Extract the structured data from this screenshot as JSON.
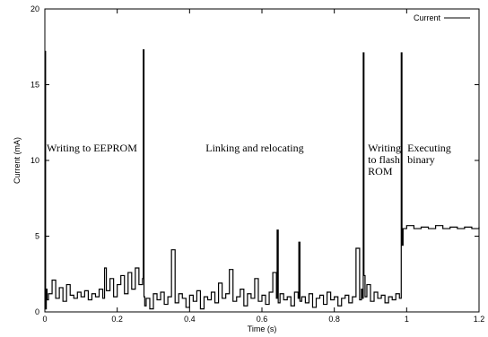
{
  "chart_data": {
    "type": "line",
    "title": "",
    "xlabel": "Time (s)",
    "ylabel": "Current (mA)",
    "xlim": [
      0,
      1.2
    ],
    "ylim": [
      0,
      20
    ],
    "xticks": [
      "0",
      "0.2",
      "0.4",
      "0.6",
      "0.8",
      "1",
      "1.2"
    ],
    "yticks": [
      "0",
      "5",
      "10",
      "15",
      "20"
    ],
    "grid": false,
    "legend": {
      "position": "top-right",
      "entries": [
        "Current"
      ]
    },
    "line_color": "#000000",
    "series": [
      {
        "name": "Current",
        "x": [
          0,
          0.002,
          0.004,
          0.006,
          0.01,
          0.02,
          0.03,
          0.04,
          0.05,
          0.06,
          0.07,
          0.08,
          0.09,
          0.1,
          0.11,
          0.12,
          0.13,
          0.14,
          0.15,
          0.16,
          0.165,
          0.17,
          0.18,
          0.19,
          0.2,
          0.21,
          0.22,
          0.23,
          0.24,
          0.25,
          0.26,
          0.27,
          0.272,
          0.274,
          0.276,
          0.28,
          0.29,
          0.3,
          0.31,
          0.32,
          0.33,
          0.34,
          0.35,
          0.36,
          0.37,
          0.38,
          0.39,
          0.4,
          0.41,
          0.42,
          0.43,
          0.44,
          0.45,
          0.46,
          0.47,
          0.48,
          0.49,
          0.5,
          0.51,
          0.52,
          0.53,
          0.54,
          0.55,
          0.56,
          0.57,
          0.58,
          0.59,
          0.6,
          0.61,
          0.62,
          0.63,
          0.64,
          0.642,
          0.645,
          0.65,
          0.66,
          0.67,
          0.68,
          0.69,
          0.7,
          0.702,
          0.705,
          0.71,
          0.72,
          0.73,
          0.74,
          0.75,
          0.76,
          0.77,
          0.78,
          0.79,
          0.8,
          0.81,
          0.82,
          0.83,
          0.84,
          0.85,
          0.86,
          0.87,
          0.875,
          0.878,
          0.88,
          0.882,
          0.885,
          0.89,
          0.9,
          0.91,
          0.92,
          0.93,
          0.94,
          0.95,
          0.96,
          0.97,
          0.98,
          0.985,
          0.987,
          0.99,
          1.0,
          1.02,
          1.04,
          1.06,
          1.08,
          1.1,
          1.12,
          1.14,
          1.16,
          1.18,
          1.2
        ],
        "y": [
          17.2,
          0.2,
          1.5,
          0.8,
          1.2,
          2.1,
          0.9,
          1.6,
          0.7,
          1.8,
          1.1,
          0.9,
          1.3,
          1.0,
          1.4,
          0.8,
          1.2,
          1.0,
          1.5,
          0.9,
          2.9,
          1.4,
          2.2,
          1.0,
          1.8,
          2.4,
          1.2,
          2.6,
          1.5,
          2.9,
          1.8,
          2.2,
          17.3,
          1.0,
          0.4,
          0.9,
          0.2,
          1.2,
          0.8,
          1.3,
          0.5,
          1.0,
          4.1,
          0.6,
          1.2,
          0.9,
          0.3,
          1.1,
          0.7,
          1.4,
          0.2,
          1.0,
          0.8,
          1.3,
          0.6,
          1.9,
          0.9,
          1.2,
          2.8,
          0.7,
          1.0,
          1.5,
          0.4,
          1.2,
          0.9,
          2.2,
          0.7,
          1.1,
          0.5,
          1.3,
          2.6,
          0.9,
          5.4,
          0.6,
          1.2,
          0.8,
          1.0,
          0.4,
          1.3,
          0.9,
          4.6,
          0.7,
          1.0,
          0.6,
          1.2,
          0.3,
          0.9,
          1.1,
          0.5,
          1.3,
          0.8,
          1.0,
          0.4,
          0.9,
          1.1,
          0.6,
          1.0,
          4.2,
          0.8,
          1.5,
          0.9,
          17.1,
          2.4,
          1.0,
          1.8,
          0.7,
          1.3,
          0.9,
          1.1,
          0.6,
          1.0,
          0.8,
          1.2,
          0.9,
          17.1,
          4.4,
          5.5,
          5.7,
          5.5,
          5.6,
          5.5,
          5.7,
          5.5,
          5.6,
          5.5,
          5.6,
          5.5,
          5.6
        ]
      }
    ],
    "annotations": [
      {
        "lines": [
          "Writing to EEPROM"
        ],
        "x": 0.005,
        "y": 10.6,
        "align": "start"
      },
      {
        "lines": [
          "Linking and relocating"
        ],
        "x": 0.58,
        "y": 10.6,
        "align": "middle"
      },
      {
        "lines": [
          "Writing",
          "to flash",
          "ROM"
        ],
        "x": 0.893,
        "y": 10.6,
        "align": "start"
      },
      {
        "lines": [
          "Executing",
          "binary"
        ],
        "x": 1.002,
        "y": 10.6,
        "align": "start"
      }
    ]
  }
}
